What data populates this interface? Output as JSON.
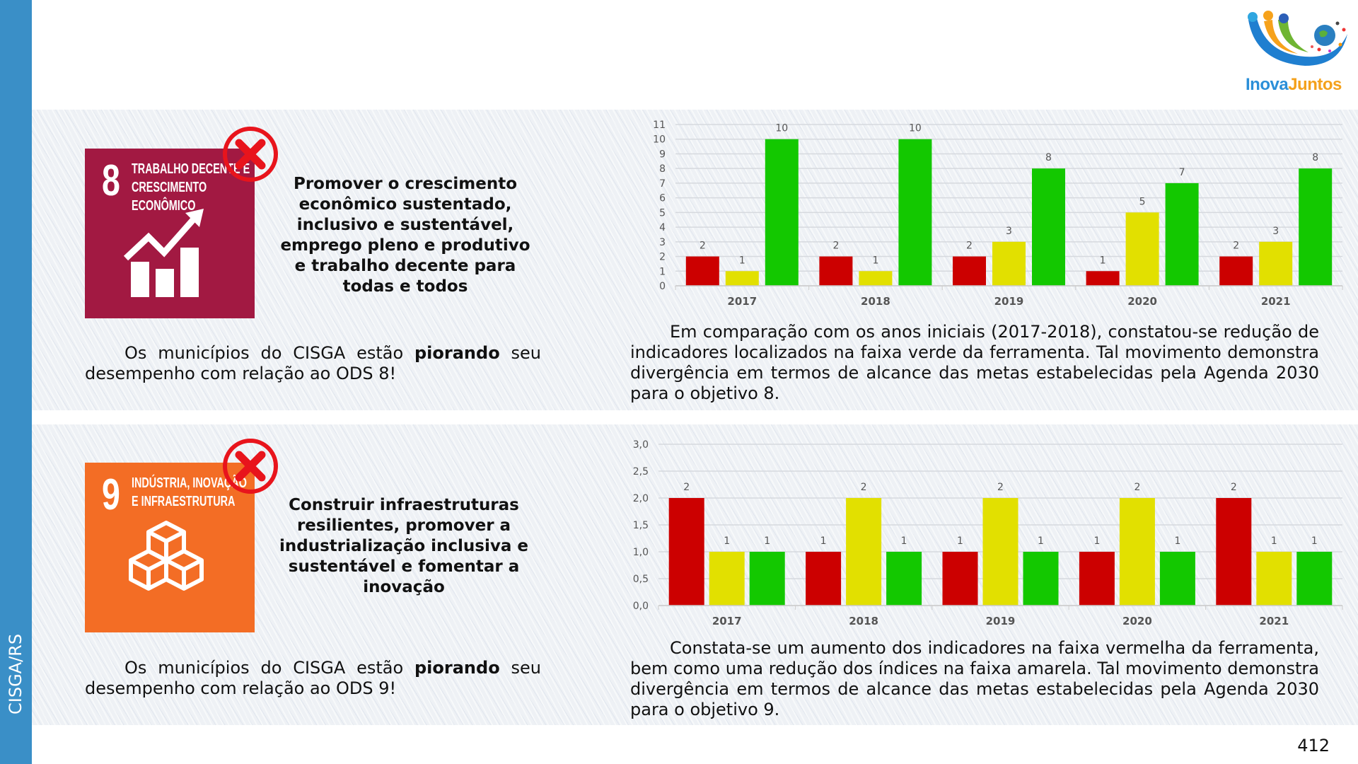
{
  "sidebar": {
    "label": "CISGA/RS"
  },
  "logo": {
    "text_part1": "Inova",
    "text_part2": "Juntos"
  },
  "page_number": "412",
  "colors": {
    "sidebar": "#3a8fc7",
    "sdg8": "#a21942",
    "sdg9": "#f36d25",
    "red": "#cc0000",
    "yellow": "#e2e000",
    "green": "#13c800",
    "x_mark": "#e8141c"
  },
  "panels": [
    {
      "sdg_number": "8",
      "sdg_title": [
        "TRABALHO DECENTE E",
        "CRESCIMENTO",
        "ECONÔMICO"
      ],
      "goal": "Promover o crescimento econômico sustentado, inclusivo e sustentável, emprego pleno e produtivo e trabalho decente para todas e todos",
      "status_before": "Os municípios do CISGA estão ",
      "status_bold": "piorando",
      "status_after": " seu desempenho com relação ao ODS 8!",
      "analysis": "Em comparação com os anos iniciais (2017-2018), constatou-se redução de indicadores localizados na faixa verde da ferramenta. Tal movimento demonstra divergência em termos de alcance das metas estabelecidas pela Agenda 2030 para o objetivo 8."
    },
    {
      "sdg_number": "9",
      "sdg_title": [
        "INDÚSTRIA, INOVAÇÃO",
        "E INFRAESTRUTURA"
      ],
      "goal": "Construir infraestruturas resilientes, promover a industrialização inclusiva e sustentável e fomentar a inovação",
      "status_before": "Os municípios do CISGA estão ",
      "status_bold": "piorando",
      "status_after": " seu desempenho com relação ao ODS 9!",
      "analysis": "Constata-se um aumento dos indicadores na faixa vermelha da ferramenta, bem como uma redução dos índices na faixa amarela. Tal movimento demonstra divergência em termos de alcance das metas estabelecidas pela Agenda 2030 para o objetivo 9."
    }
  ],
  "chart_data": [
    {
      "type": "bar",
      "title": "",
      "categories": [
        "2017",
        "2018",
        "2019",
        "2020",
        "2021"
      ],
      "series": [
        {
          "name": "Vermelho",
          "color": "#cc0000",
          "values": [
            2,
            2,
            2,
            1,
            2
          ]
        },
        {
          "name": "Amarelo",
          "color": "#e2e000",
          "values": [
            1,
            1,
            3,
            5,
            3
          ]
        },
        {
          "name": "Verde",
          "color": "#13c800",
          "values": [
            10,
            10,
            8,
            7,
            8
          ]
        }
      ],
      "ylim": [
        0,
        11
      ],
      "yticks": [
        0,
        1,
        2,
        3,
        4,
        5,
        6,
        7,
        8,
        9,
        10,
        11
      ],
      "ytick_labels": [
        "0",
        "1",
        "2",
        "3",
        "4",
        "5",
        "6",
        "7",
        "8",
        "9",
        "10",
        "11"
      ],
      "grid": true,
      "legend": "none",
      "xlabel": "",
      "ylabel": ""
    },
    {
      "type": "bar",
      "title": "",
      "categories": [
        "2017",
        "2018",
        "2019",
        "2020",
        "2021"
      ],
      "series": [
        {
          "name": "Vermelho",
          "color": "#cc0000",
          "values": [
            2,
            1,
            1,
            1,
            2
          ]
        },
        {
          "name": "Amarelo",
          "color": "#e2e000",
          "values": [
            1,
            2,
            2,
            2,
            1
          ]
        },
        {
          "name": "Verde",
          "color": "#13c800",
          "values": [
            1,
            1,
            1,
            1,
            1
          ]
        }
      ],
      "ylim": [
        0,
        3
      ],
      "yticks": [
        0,
        0.5,
        1,
        1.5,
        2,
        2.5,
        3
      ],
      "ytick_labels": [
        "0,0",
        "0,5",
        "1,0",
        "1,5",
        "2,0",
        "2,5",
        "3,0"
      ],
      "grid": true,
      "legend": "none",
      "xlabel": "",
      "ylabel": ""
    }
  ]
}
